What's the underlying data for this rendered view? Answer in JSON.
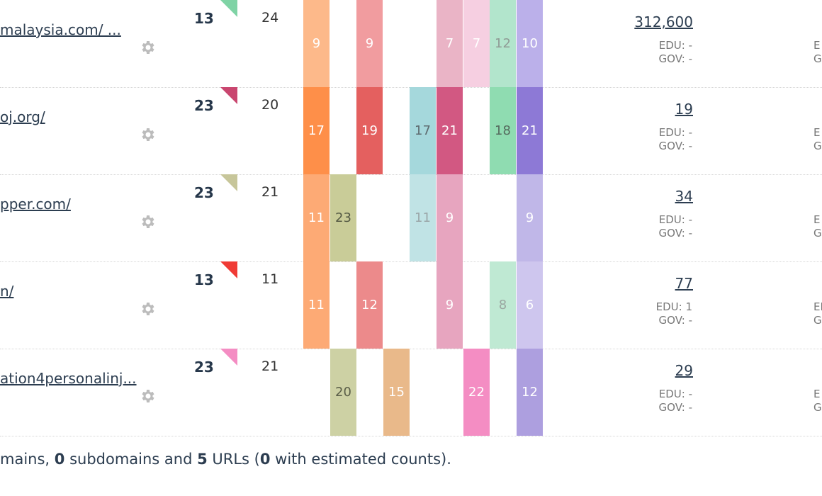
{
  "rows": [
    {
      "link": "malaysia.com/ ...",
      "score": "13",
      "flag_color": "#7fd3a5",
      "count": "24",
      "cells": [
        {
          "value": "9",
          "bg": "#fdb98a",
          "fg": "#ffffff"
        },
        {
          "value": "",
          "bg": "",
          "fg": ""
        },
        {
          "value": "9",
          "bg": "#f19c9f",
          "fg": "#ffffff"
        },
        {
          "value": "",
          "bg": "",
          "fg": ""
        },
        {
          "value": "",
          "bg": "",
          "fg": ""
        },
        {
          "value": "7",
          "bg": "#eab4c6",
          "fg": "#ffffff"
        },
        {
          "value": "7",
          "bg": "#f6cfe1",
          "fg": "#ffffff"
        },
        {
          "value": "12",
          "bg": "#b2e5cc",
          "fg": "#8f9b95"
        },
        {
          "value": "10",
          "bg": "#bbb0ea",
          "fg": "#ffffff"
        }
      ],
      "links_count": "312,600",
      "edu": "EDU: -",
      "gov": "GOV: -",
      "edu_clip": "E",
      "gov_clip": "G"
    },
    {
      "link": "oj.org/",
      "score": "23",
      "flag_color": "#c9466f",
      "count": "20",
      "cells": [
        {
          "value": "17",
          "bg": "#fe8f49",
          "fg": "#ffffff"
        },
        {
          "value": "",
          "bg": "",
          "fg": ""
        },
        {
          "value": "19",
          "bg": "#e4605f",
          "fg": "#ffffff"
        },
        {
          "value": "",
          "bg": "",
          "fg": ""
        },
        {
          "value": "17",
          "bg": "#a5d8dc",
          "fg": "#5d6a6e"
        },
        {
          "value": "21",
          "bg": "#d25882",
          "fg": "#ffffff"
        },
        {
          "value": "",
          "bg": "",
          "fg": ""
        },
        {
          "value": "18",
          "bg": "#8fdcb1",
          "fg": "#556b5e"
        },
        {
          "value": "21",
          "bg": "#8d79d6",
          "fg": "#ffffff"
        }
      ],
      "links_count": "19",
      "edu": "EDU: -",
      "gov": "GOV: -",
      "edu_clip": "E",
      "gov_clip": "G"
    },
    {
      "link": "pper.com/",
      "score": "23",
      "flag_color": "#c7c69a",
      "count": "21",
      "cells": [
        {
          "value": "11",
          "bg": "#fdaa75",
          "fg": "#ffffff"
        },
        {
          "value": "23",
          "bg": "#c9cc98",
          "fg": "#555a44"
        },
        {
          "value": "",
          "bg": "",
          "fg": ""
        },
        {
          "value": "",
          "bg": "",
          "fg": ""
        },
        {
          "value": "11",
          "bg": "#c0e3e5",
          "fg": "#9aa6a8"
        },
        {
          "value": "9",
          "bg": "#e7a5bf",
          "fg": "#ffffff"
        },
        {
          "value": "",
          "bg": "",
          "fg": ""
        },
        {
          "value": "",
          "bg": "",
          "fg": ""
        },
        {
          "value": "9",
          "bg": "#c0b7e8",
          "fg": "#ffffff"
        }
      ],
      "links_count": "34",
      "edu": "EDU: -",
      "gov": "GOV: -",
      "edu_clip": "E",
      "gov_clip": "G"
    },
    {
      "link": "n/",
      "score": "13",
      "flag_color": "#f03b35",
      "count": "11",
      "cells": [
        {
          "value": "11",
          "bg": "#fdaa75",
          "fg": "#ffffff"
        },
        {
          "value": "",
          "bg": "",
          "fg": ""
        },
        {
          "value": "12",
          "bg": "#ec8a8b",
          "fg": "#ffffff"
        },
        {
          "value": "",
          "bg": "",
          "fg": ""
        },
        {
          "value": "",
          "bg": "",
          "fg": ""
        },
        {
          "value": "9",
          "bg": "#e7a5bf",
          "fg": "#ffffff"
        },
        {
          "value": "",
          "bg": "",
          "fg": ""
        },
        {
          "value": "8",
          "bg": "#bfe9d3",
          "fg": "#9aa6a0"
        },
        {
          "value": "6",
          "bg": "#cec6ee",
          "fg": "#ffffff"
        }
      ],
      "links_count": "77",
      "edu": "EDU: 1",
      "gov": "GOV: -",
      "edu_clip": "ED",
      "gov_clip": "G"
    },
    {
      "link": "ation4personalinj...",
      "score": "23",
      "flag_color": "#f48dc3",
      "count": "21",
      "cells": [
        {
          "value": "",
          "bg": "",
          "fg": ""
        },
        {
          "value": "20",
          "bg": "#cdd1a4",
          "fg": "#5a5e48"
        },
        {
          "value": "",
          "bg": "",
          "fg": ""
        },
        {
          "value": "15",
          "bg": "#e9b98a",
          "fg": "#ffffff"
        },
        {
          "value": "",
          "bg": "",
          "fg": ""
        },
        {
          "value": "",
          "bg": "",
          "fg": ""
        },
        {
          "value": "22",
          "bg": "#f48dc3",
          "fg": "#ffffff"
        },
        {
          "value": "",
          "bg": "",
          "fg": ""
        },
        {
          "value": "12",
          "bg": "#ad9fdf",
          "fg": "#ffffff"
        }
      ],
      "links_count": "29",
      "edu": "EDU: -",
      "gov": "GOV: -",
      "edu_clip": "E",
      "gov_clip": "G"
    }
  ],
  "footer": {
    "part1": "mains, ",
    "subdomains_count": "0",
    "part2": " subdomains and ",
    "urls_count": "5",
    "part3": " URLs (",
    "estimated_count": "0",
    "part4": " with estimated counts)."
  }
}
